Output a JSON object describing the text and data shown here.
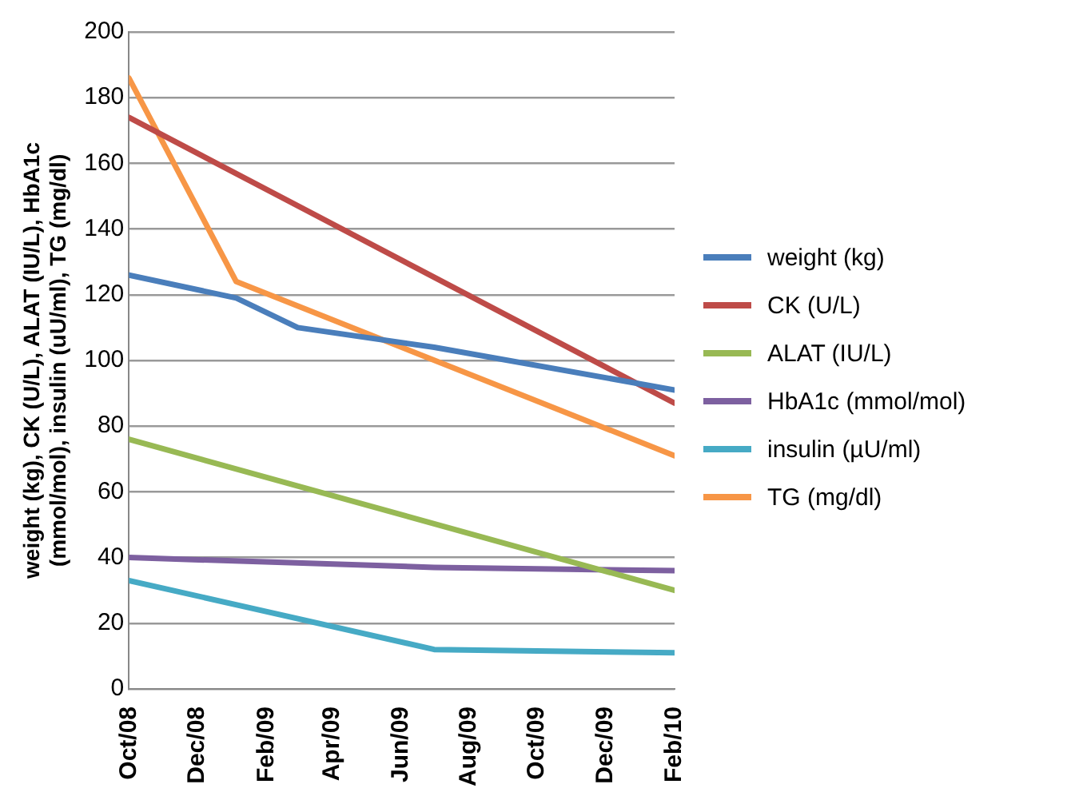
{
  "chart_data": {
    "type": "line",
    "ylabel": "weight (kg), CK (U/L), ALAT (IU/L), HbA1c (mmol/mol), insulin (uU/ml), TG (mg/dl)",
    "xlim": [
      "2008-10-01",
      "2010-02-01"
    ],
    "xticks": [
      {
        "value": "2008-10-01",
        "label": "Oct/08"
      },
      {
        "value": "2008-12-01",
        "label": "Dec/08"
      },
      {
        "value": "2009-02-01",
        "label": "Feb/09"
      },
      {
        "value": "2009-04-01",
        "label": "Apr/09"
      },
      {
        "value": "2009-06-01",
        "label": "Jun/09"
      },
      {
        "value": "2009-08-01",
        "label": "Aug/09"
      },
      {
        "value": "2009-10-01",
        "label": "Oct/09"
      },
      {
        "value": "2009-12-01",
        "label": "Dec/09"
      },
      {
        "value": "2010-02-01",
        "label": "Feb/10"
      }
    ],
    "ylim": [
      0,
      200
    ],
    "yticks": [
      0,
      20,
      40,
      60,
      80,
      100,
      120,
      140,
      160,
      180,
      200
    ],
    "grid": "y",
    "legend": "right",
    "marker": "none",
    "series": [
      {
        "name": "weight (kg)",
        "color": "#4a7ebb",
        "x": [
          "2008-10-01",
          "2009-01-05",
          "2009-03-01",
          "2009-07-01",
          "2010-02-01"
        ],
        "values": [
          126,
          119,
          110,
          104,
          91
        ]
      },
      {
        "name": "CK (U/L)",
        "color": "#be4b48",
        "x": [
          "2008-10-01",
          "2010-02-01"
        ],
        "values": [
          174,
          87
        ]
      },
      {
        "name": "ALAT (IU/L)",
        "color": "#98b954",
        "x": [
          "2008-10-01",
          "2010-02-01"
        ],
        "values": [
          76,
          30
        ]
      },
      {
        "name": "HbA1c (mmol/mol)",
        "color": "#7d60a0",
        "x": [
          "2008-10-01",
          "2009-07-01",
          "2010-02-01"
        ],
        "values": [
          40,
          37,
          36
        ]
      },
      {
        "name": "insulin (µU/ml)",
        "color": "#46aac5",
        "x": [
          "2008-10-01",
          "2009-07-01",
          "2010-02-01"
        ],
        "values": [
          33,
          12,
          11
        ]
      },
      {
        "name": "TG (mg/dl)",
        "color": "#f79646",
        "x": [
          "2008-10-01",
          "2009-01-05",
          "2010-02-01"
        ],
        "values": [
          186,
          124,
          71
        ]
      }
    ]
  }
}
